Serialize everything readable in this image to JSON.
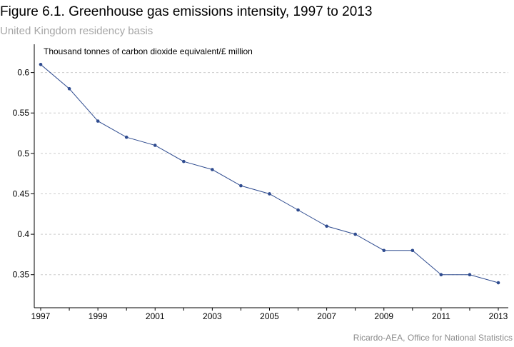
{
  "header": {
    "title": "Figure 6.1. Greenhouse gas emissions intensity, 1997 to 2013",
    "subtitle": "United Kingdom residency basis"
  },
  "footer": {
    "source": "Ricardo-AEA, Office for National Statistics"
  },
  "colors": {
    "line": "#2e4b8f",
    "grid": "#cccccc",
    "axis": "#000000"
  },
  "chart_data": {
    "type": "line",
    "ylabel": "Thousand tonnes of carbon dioxide equivalent/£ million",
    "xlabel": "",
    "x": [
      1997,
      1998,
      1999,
      2000,
      2001,
      2002,
      2003,
      2004,
      2005,
      2006,
      2007,
      2008,
      2009,
      2010,
      2011,
      2012,
      2013
    ],
    "series": [
      {
        "values": [
          0.61,
          0.58,
          0.54,
          0.52,
          0.51,
          0.49,
          0.48,
          0.46,
          0.45,
          0.43,
          0.41,
          0.4,
          0.38,
          0.38,
          0.35,
          0.35,
          0.34
        ]
      }
    ],
    "xlim": [
      1997,
      2013
    ],
    "ylim": [
      0.31,
      0.635
    ],
    "x_ticks": [
      "1997",
      "1999",
      "2001",
      "2003",
      "2005",
      "2007",
      "2009",
      "2011",
      "2013"
    ],
    "y_ticks": [
      "0.35",
      "0.4",
      "0.45",
      "0.5",
      "0.55",
      "0.6"
    ],
    "grid": "horizontal dashed",
    "legend": "none"
  }
}
